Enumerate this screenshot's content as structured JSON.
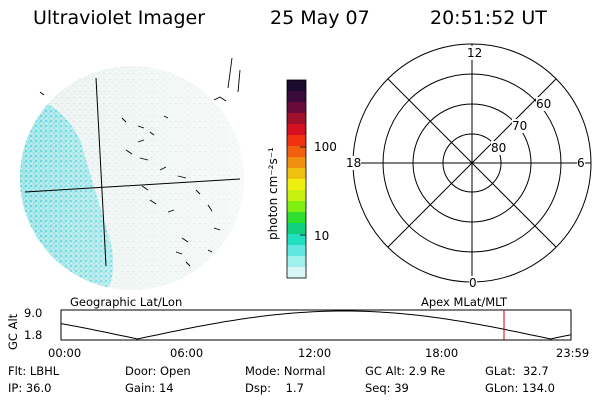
{
  "header": {
    "instrument": "Ultraviolet Imager",
    "date": "25 May 07",
    "time": "20:51:52 UT"
  },
  "colorbar": {
    "unit_label": "photon cm⁻²s⁻¹",
    "ticks": [
      "100",
      "10"
    ],
    "colors": [
      "#1a0a2e",
      "#3a0a3a",
      "#6a0a3a",
      "#a0102a",
      "#d41020",
      "#f03010",
      "#f06010",
      "#f09010",
      "#f0c010",
      "#f0f010",
      "#c8f010",
      "#80f010",
      "#30e030",
      "#10d080",
      "#20e0c0",
      "#60e8e0",
      "#a0f0ee",
      "#d8f6f6"
    ]
  },
  "left_panel": {
    "name": "geographic-image"
  },
  "polar_plot": {
    "mlt_labels": {
      "top": "12",
      "bottom": "0",
      "left": "18",
      "right": "6"
    },
    "lat_labels": [
      "60",
      "70",
      "80"
    ]
  },
  "timeline": {
    "left_title": "Geographic Lat/Lon",
    "right_title": "Apex MLat/MLT",
    "ylabel": "GC Alt",
    "y_ticks": [
      "9.0",
      "1.8"
    ],
    "x_ticks": [
      "00:00",
      "06:00",
      "12:00",
      "18:00",
      "23:59"
    ],
    "marker_color": "#cc0000"
  },
  "status": {
    "flt": "Flt: LBHL",
    "door": "Door: Open",
    "mode": "Mode: Normal",
    "gc_alt": "GC Alt: 2.9 Re",
    "glat": "GLat:  32.7",
    "ip": "IP: 36.0",
    "gain": "Gain: 14",
    "dsp": "Dsp:    1.7",
    "seq": "Seq: 39",
    "glon": "GLon: 134.0"
  }
}
